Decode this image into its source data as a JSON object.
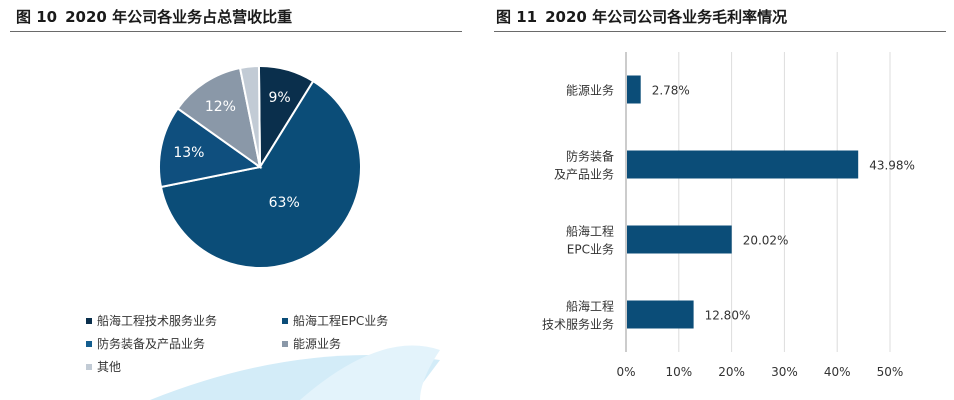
{
  "left_figure": {
    "label": "图 10",
    "title": "2020 年公司各业务占总营收比重"
  },
  "right_figure": {
    "label": "图 11",
    "title": "2020 年公司公司各业务毛利率情况"
  },
  "colors": {
    "tech_service": "#0a2f4c",
    "epc": "#0b4d78",
    "defense": "#145e8f",
    "energy": "#8a98a8",
    "other": "#c2cbd5",
    "bar": "#0b4d78"
  },
  "chart_data": [
    {
      "type": "pie",
      "title": "",
      "slices": [
        {
          "label": "能源业务",
          "value": 9,
          "value_label": "9%",
          "color": "#0a2f4c"
        },
        {
          "label": "防务装备及产品业务",
          "value": 63,
          "value_label": "63%",
          "color": "#0b4d78"
        },
        {
          "label": "船海工程EPC业务",
          "value": 13,
          "value_label": "13%",
          "color": "#0f4f7e"
        },
        {
          "label": "船海工程技术服务业务",
          "value": 12,
          "value_label": "12%",
          "color": "#8a98a8"
        },
        {
          "label": "其他",
          "value": 3,
          "value_label": "",
          "color": "#c2cbd5"
        }
      ],
      "legend": [
        {
          "label": "船海工程技术服务业务",
          "color": "#0a2f4c"
        },
        {
          "label": "船海工程EPC业务",
          "color": "#0b4d78"
        },
        {
          "label": "防务装备及产品业务",
          "color": "#145e8f"
        },
        {
          "label": "能源业务",
          "color": "#8a98a8"
        },
        {
          "label": "其他",
          "color": "#c2cbd5"
        }
      ],
      "legend_position": "bottom"
    },
    {
      "type": "bar",
      "orientation": "horizontal",
      "title": "",
      "categories": [
        [
          "能源业务"
        ],
        [
          "防务装备",
          "及产品业务"
        ],
        [
          "船海工程",
          "EPC业务"
        ],
        [
          "船海工程",
          "技术服务业务"
        ]
      ],
      "values": [
        2.78,
        43.98,
        20.02,
        12.8
      ],
      "value_labels": [
        "2.78%",
        "43.98%",
        "20.02%",
        "12.80%"
      ],
      "xlim": [
        0,
        50
      ],
      "xticks": [
        "0%",
        "10%",
        "20%",
        "30%",
        "40%",
        "50%"
      ],
      "grid": "vertical",
      "xlabel": "",
      "ylabel": ""
    }
  ]
}
